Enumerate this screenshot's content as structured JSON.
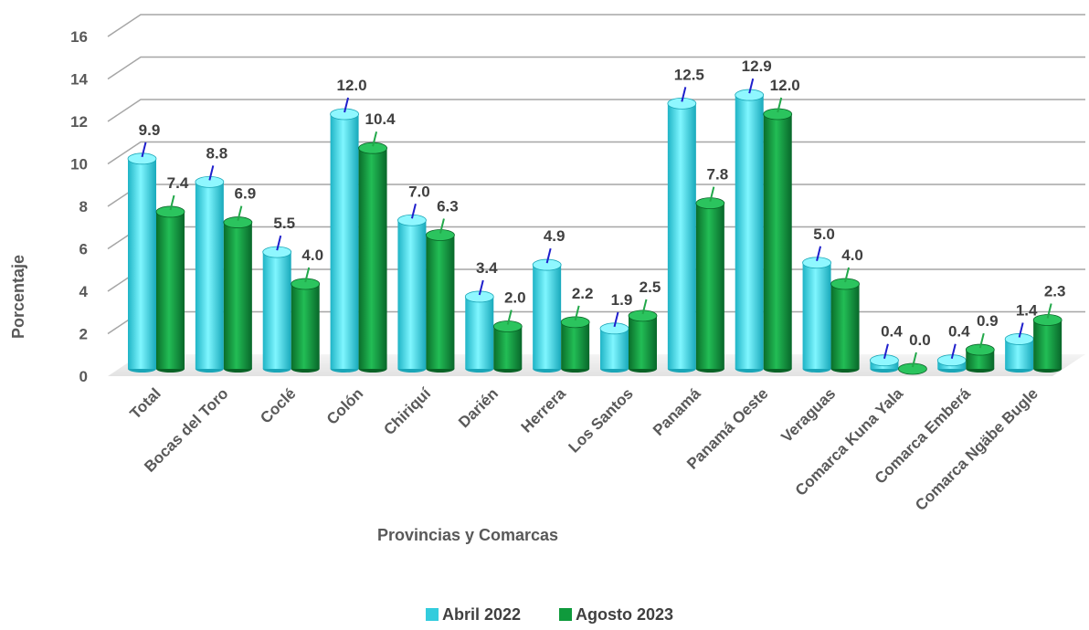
{
  "chart_data": {
    "type": "bar",
    "title": "",
    "xlabel": "Provincias y Comarcas",
    "ylabel": "Porcentaje",
    "ylim": [
      0,
      16
    ],
    "yticks": [
      0,
      2,
      4,
      6,
      8,
      10,
      12,
      14,
      16
    ],
    "grid": true,
    "legend_position": "bottom",
    "categories": [
      "Total",
      "Bocas del Toro",
      "Coclé",
      "Colón",
      "Chiriquí",
      "Darién",
      "Herrera",
      "Los Santos",
      "Panamá",
      "Panamá Oeste",
      "Veraguas",
      "Comarca Kuna Yala",
      "Comarca Emberá",
      "Comarca Ngäbe Bugle"
    ],
    "series": [
      {
        "name": "Abril 2022",
        "color": "#33ccdd",
        "values": [
          9.9,
          8.8,
          5.5,
          12.0,
          7.0,
          3.4,
          4.9,
          1.9,
          12.5,
          12.9,
          5.0,
          0.4,
          0.4,
          1.4
        ],
        "labels": [
          "9.9",
          "8.8",
          "5.5",
          "12.0",
          "7.0",
          "3.4",
          "4.9",
          "1.9",
          "12.5",
          "12.9",
          "5.0",
          "0.4",
          "0.4",
          "1.4"
        ]
      },
      {
        "name": "Agosto 2023",
        "color": "#0f9a3c",
        "values": [
          7.4,
          6.9,
          4.0,
          10.4,
          6.3,
          2.0,
          2.2,
          2.5,
          7.8,
          12.0,
          4.0,
          0.0,
          0.9,
          2.3
        ],
        "labels": [
          "7.4",
          "6.9",
          "4.0",
          "10.4",
          "6.3",
          "2.0",
          "2.2",
          "2.5",
          "7.8",
          "12.0",
          "4.0",
          "0.0",
          "0.9",
          "2.3"
        ]
      }
    ]
  }
}
